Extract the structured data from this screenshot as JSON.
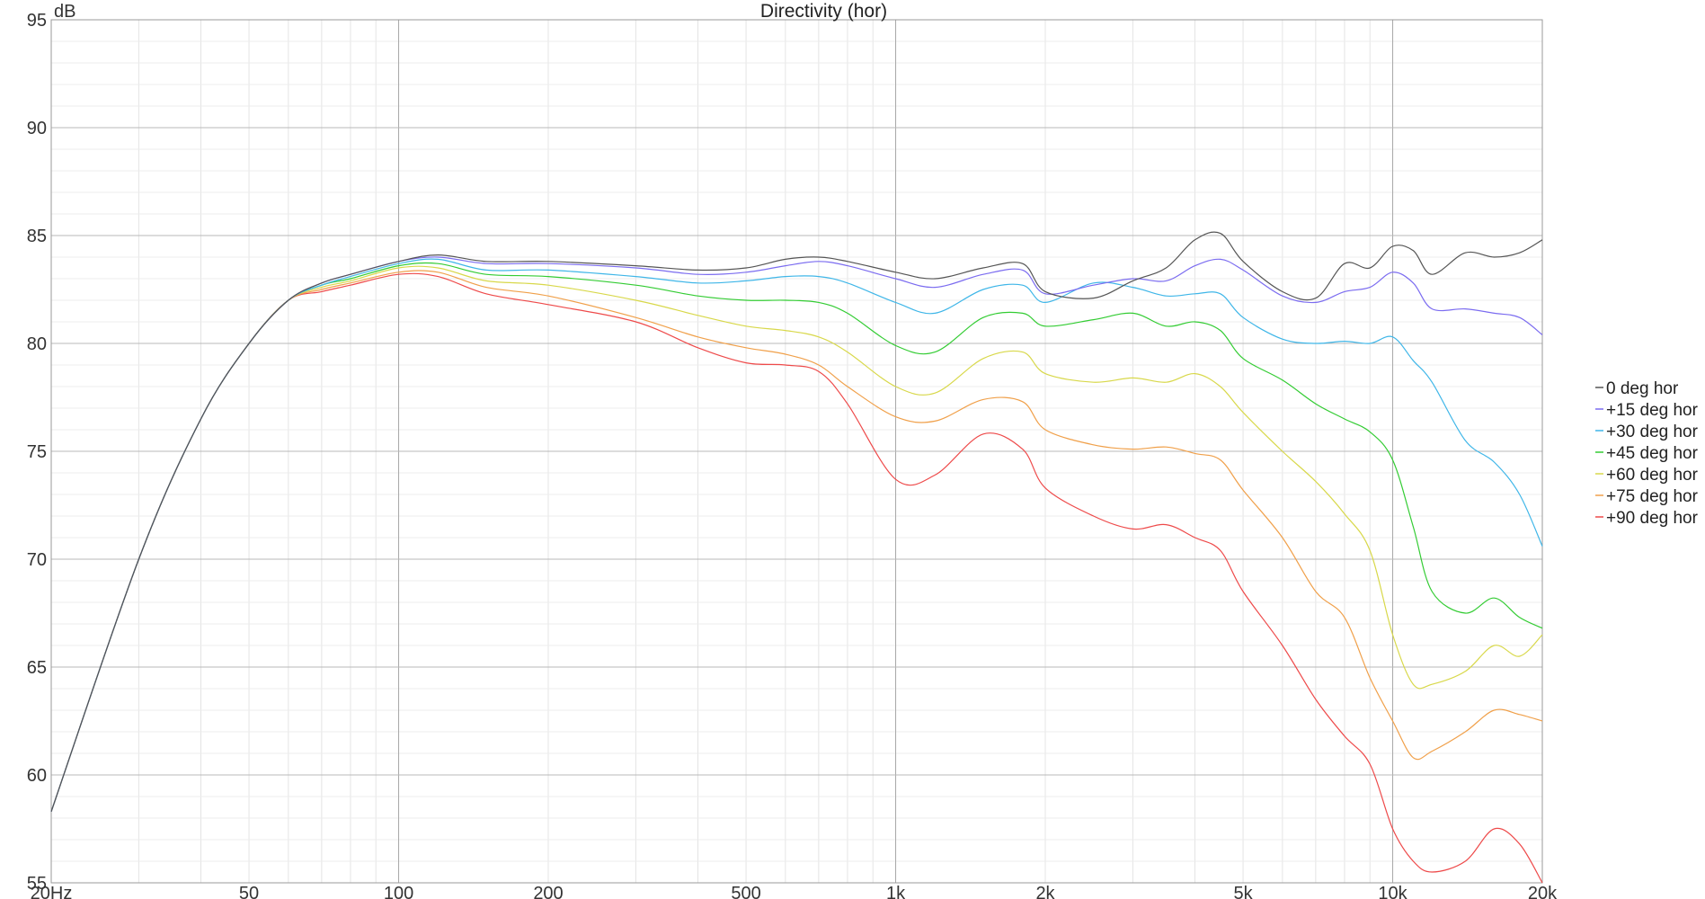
{
  "chart_data": {
    "type": "line",
    "title": "Directivity (hor)",
    "ylabel": "dB",
    "xlabel": "",
    "x_scale": "log",
    "xlim": [
      20,
      20000
    ],
    "ylim": [
      55,
      95
    ],
    "grid": true,
    "legend_position": "right",
    "x_ticks": [
      {
        "value": 20,
        "label": "20Hz"
      },
      {
        "value": 50,
        "label": "50"
      },
      {
        "value": 100,
        "label": "100"
      },
      {
        "value": 200,
        "label": "200"
      },
      {
        "value": 500,
        "label": "500"
      },
      {
        "value": 1000,
        "label": "1k"
      },
      {
        "value": 2000,
        "label": "2k"
      },
      {
        "value": 5000,
        "label": "5k"
      },
      {
        "value": 10000,
        "label": "10k"
      },
      {
        "value": 20000,
        "label": "20k"
      }
    ],
    "y_ticks": [
      {
        "value": 95,
        "label": "95"
      },
      {
        "value": 90,
        "label": "90"
      },
      {
        "value": 85,
        "label": "85"
      },
      {
        "value": 80,
        "label": "80"
      },
      {
        "value": 75,
        "label": "75"
      },
      {
        "value": 70,
        "label": "70"
      },
      {
        "value": 65,
        "label": "65"
      },
      {
        "value": 60,
        "label": "60"
      },
      {
        "value": 55,
        "label": "55"
      }
    ],
    "x": [
      20,
      30,
      40,
      50,
      60,
      70,
      80,
      100,
      120,
      150,
      200,
      300,
      400,
      500,
      600,
      700,
      800,
      1000,
      1200,
      1500,
      1800,
      2000,
      2500,
      3000,
      3500,
      4000,
      4500,
      5000,
      6000,
      7000,
      8000,
      9000,
      10000,
      11000,
      12000,
      14000,
      16000,
      18000,
      20000
    ],
    "series": [
      {
        "name": "0 deg hor",
        "color": "#555555",
        "values": [
          58.3,
          70.0,
          76.5,
          80.0,
          82.0,
          82.8,
          83.2,
          83.8,
          84.1,
          83.8,
          83.8,
          83.6,
          83.4,
          83.5,
          83.9,
          84.0,
          83.8,
          83.3,
          83.0,
          83.5,
          83.7,
          82.4,
          82.1,
          82.9,
          83.5,
          84.8,
          85.1,
          83.8,
          82.4,
          82.1,
          83.7,
          83.5,
          84.5,
          84.3,
          83.2,
          84.2,
          84.0,
          84.2,
          84.8
        ]
      },
      {
        "name": "+15 deg hor",
        "color": "#7b6cf0",
        "values": [
          58.3,
          70.0,
          76.5,
          80.0,
          82.0,
          82.8,
          83.2,
          83.8,
          84.0,
          83.7,
          83.7,
          83.5,
          83.2,
          83.3,
          83.6,
          83.8,
          83.6,
          83.0,
          82.6,
          83.2,
          83.4,
          82.3,
          82.7,
          83.0,
          82.9,
          83.6,
          83.9,
          83.4,
          82.2,
          81.9,
          82.4,
          82.6,
          83.3,
          82.8,
          81.6,
          81.6,
          81.4,
          81.2,
          80.4
        ]
      },
      {
        "name": "+30 deg hor",
        "color": "#3fb6e8",
        "values": [
          58.3,
          70.0,
          76.5,
          80.0,
          82.0,
          82.7,
          83.1,
          83.7,
          83.9,
          83.4,
          83.4,
          83.1,
          82.8,
          82.9,
          83.1,
          83.1,
          82.8,
          81.9,
          81.4,
          82.5,
          82.7,
          81.9,
          82.8,
          82.6,
          82.2,
          82.3,
          82.3,
          81.2,
          80.2,
          80.0,
          80.1,
          80.0,
          80.3,
          79.2,
          78.2,
          75.5,
          74.5,
          73.0,
          70.6
        ]
      },
      {
        "name": "+45 deg hor",
        "color": "#33cc33",
        "values": [
          58.3,
          70.0,
          76.5,
          80.0,
          82.0,
          82.7,
          83.0,
          83.6,
          83.7,
          83.2,
          83.1,
          82.7,
          82.2,
          82.0,
          82.0,
          81.9,
          81.4,
          79.9,
          79.6,
          81.2,
          81.4,
          80.8,
          81.1,
          81.4,
          80.8,
          81.0,
          80.6,
          79.3,
          78.3,
          77.2,
          76.5,
          75.9,
          74.6,
          71.5,
          68.5,
          67.5,
          68.2,
          67.3,
          66.8
        ]
      },
      {
        "name": "+60 deg hor",
        "color": "#d8d84a",
        "values": [
          58.3,
          70.0,
          76.5,
          80.0,
          82.0,
          82.6,
          82.9,
          83.5,
          83.5,
          82.9,
          82.7,
          82.0,
          81.3,
          80.8,
          80.6,
          80.3,
          79.6,
          78.0,
          77.7,
          79.3,
          79.6,
          78.6,
          78.2,
          78.4,
          78.2,
          78.6,
          78.0,
          76.8,
          75.0,
          73.6,
          72.1,
          70.4,
          66.5,
          64.2,
          64.2,
          64.8,
          66.0,
          65.5,
          66.5
        ]
      },
      {
        "name": "+75 deg hor",
        "color": "#f0a04a",
        "values": [
          58.3,
          70.0,
          76.5,
          80.0,
          82.0,
          82.5,
          82.8,
          83.3,
          83.3,
          82.6,
          82.2,
          81.2,
          80.3,
          79.8,
          79.5,
          79.0,
          78.0,
          76.6,
          76.4,
          77.4,
          77.3,
          76.0,
          75.3,
          75.1,
          75.2,
          74.9,
          74.6,
          73.2,
          71.0,
          68.5,
          67.3,
          64.5,
          62.5,
          60.8,
          61.1,
          62.0,
          63.0,
          62.8,
          62.5
        ]
      },
      {
        "name": "+90 deg hor",
        "color": "#ee4a4a",
        "values": [
          58.3,
          70.0,
          76.5,
          80.0,
          82.0,
          82.4,
          82.7,
          83.2,
          83.1,
          82.3,
          81.8,
          81.0,
          79.8,
          79.1,
          79.0,
          78.7,
          77.2,
          73.7,
          73.9,
          75.8,
          75.1,
          73.3,
          72.0,
          71.4,
          71.6,
          71.0,
          70.4,
          68.5,
          66.0,
          63.5,
          61.8,
          60.5,
          57.5,
          56.0,
          55.5,
          56.0,
          57.5,
          56.8,
          55.0
        ]
      }
    ]
  }
}
